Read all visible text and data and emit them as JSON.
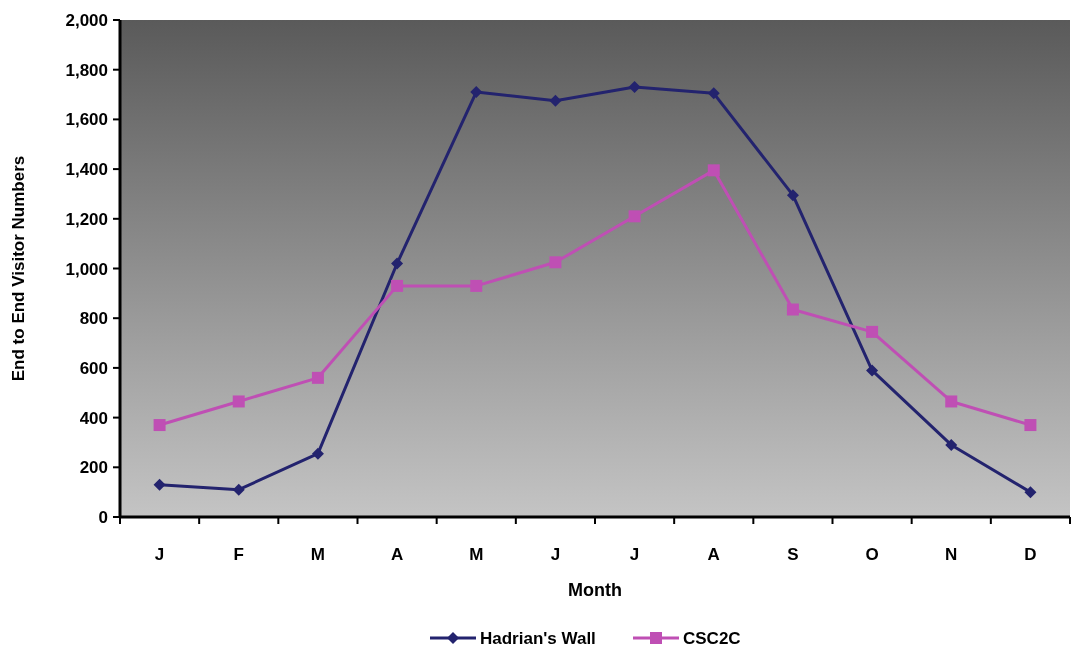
{
  "chart_data": {
    "type": "line",
    "xlabel": "Month",
    "ylabel": "End to End Visitor Numbers",
    "categories": [
      "J",
      "F",
      "M",
      "A",
      "M",
      "J",
      "J",
      "A",
      "S",
      "O",
      "N",
      "D"
    ],
    "series": [
      {
        "name": "Hadrian's Wall",
        "color": "#23236e",
        "marker": "diamond",
        "values": [
          130,
          110,
          255,
          1020,
          1710,
          1675,
          1730,
          1705,
          1295,
          590,
          290,
          100
        ]
      },
      {
        "name": "CSC2C",
        "color": "#bf4fb4",
        "marker": "square",
        "values": [
          370,
          465,
          560,
          930,
          930,
          1025,
          1210,
          1395,
          835,
          745,
          465,
          370
        ]
      }
    ],
    "ylim": [
      0,
      2000
    ],
    "yticks": [
      {
        "value": 0,
        "label": "0"
      },
      {
        "value": 200,
        "label": "200"
      },
      {
        "value": 400,
        "label": "400"
      },
      {
        "value": 600,
        "label": "600"
      },
      {
        "value": 800,
        "label": "800"
      },
      {
        "value": 1000,
        "label": "1,000"
      },
      {
        "value": 1200,
        "label": "1,200"
      },
      {
        "value": 1400,
        "label": "1,400"
      },
      {
        "value": 1600,
        "label": "1,600"
      },
      {
        "value": 1800,
        "label": "1,800"
      },
      {
        "value": 2000,
        "label": "2,000"
      }
    ],
    "grid": false,
    "legend": "bottom"
  }
}
